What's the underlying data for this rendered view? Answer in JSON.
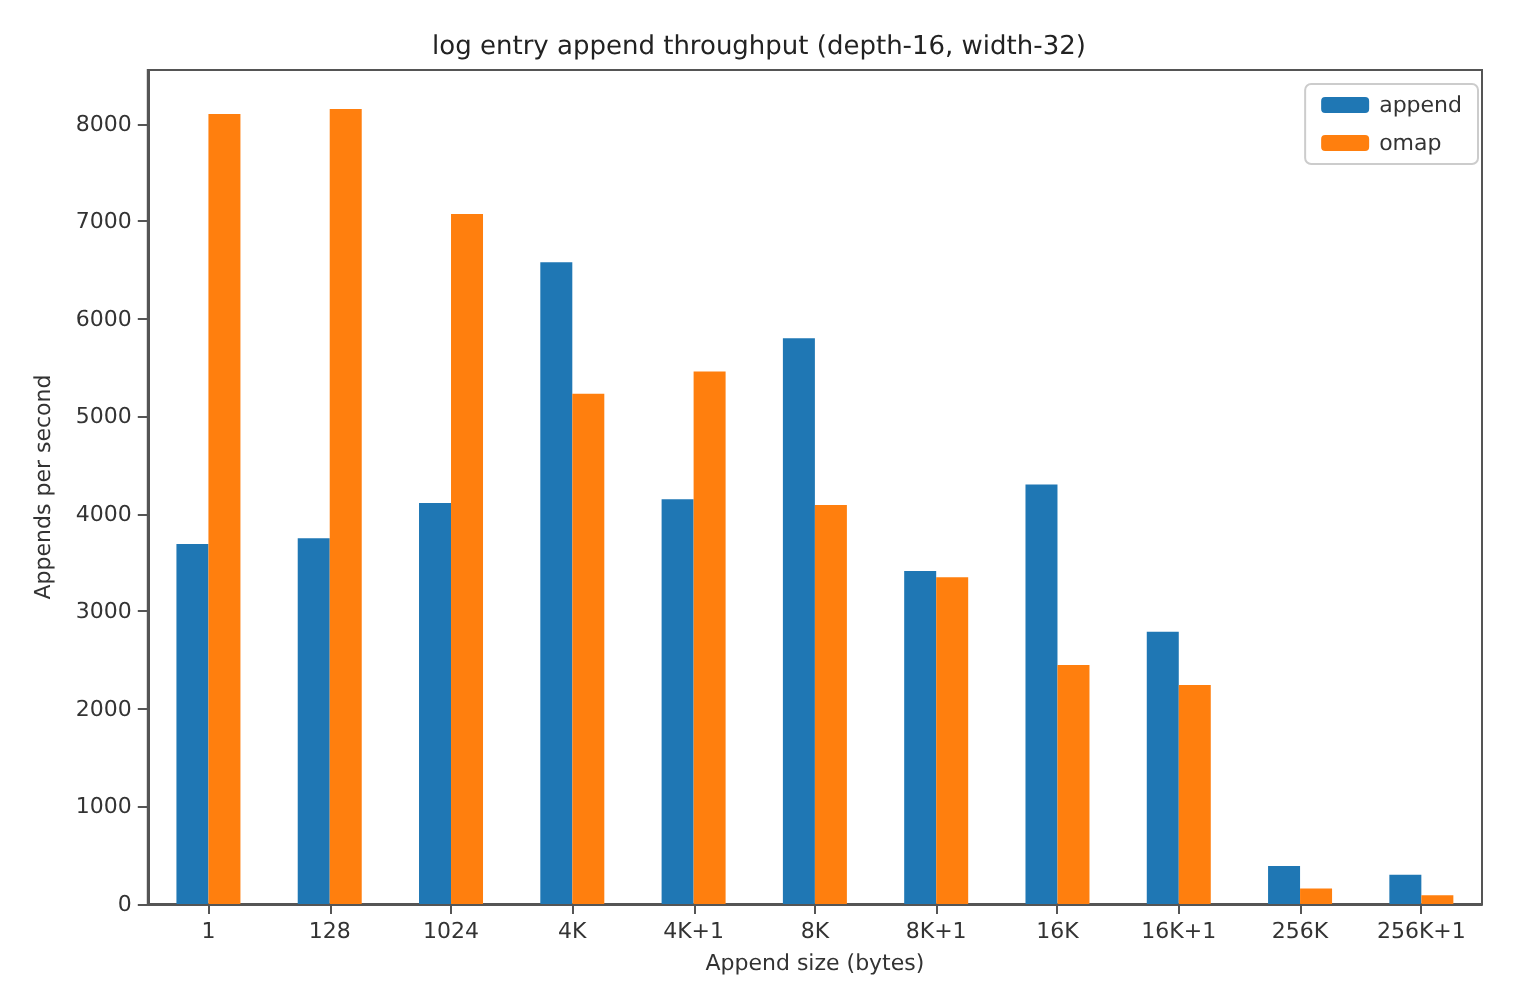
{
  "chart_data": {
    "type": "bar",
    "title": "log entry append throughput (depth-16, width-32)",
    "xlabel": "Append size (bytes)",
    "ylabel": "Appends per second",
    "categories": [
      "1",
      "128",
      "1024",
      "4K",
      "4K+1",
      "8K",
      "8K+1",
      "16K",
      "16K+1",
      "256K",
      "256K+1"
    ],
    "series": [
      {
        "name": "append",
        "color": "#1f77b4",
        "values": [
          3690,
          3750,
          4110,
          6580,
          4150,
          5800,
          3415,
          4300,
          2790,
          390,
          300
        ]
      },
      {
        "name": "omap",
        "color": "#ff7f0e",
        "values": [
          8100,
          8150,
          7075,
          5230,
          5460,
          4090,
          3350,
          2450,
          2245,
          160,
          90
        ]
      }
    ],
    "ylim": [
      0,
      8550
    ],
    "yticks": [
      0,
      1000,
      2000,
      3000,
      4000,
      5000,
      6000,
      7000,
      8000
    ],
    "grid": false,
    "legend": "top right"
  }
}
